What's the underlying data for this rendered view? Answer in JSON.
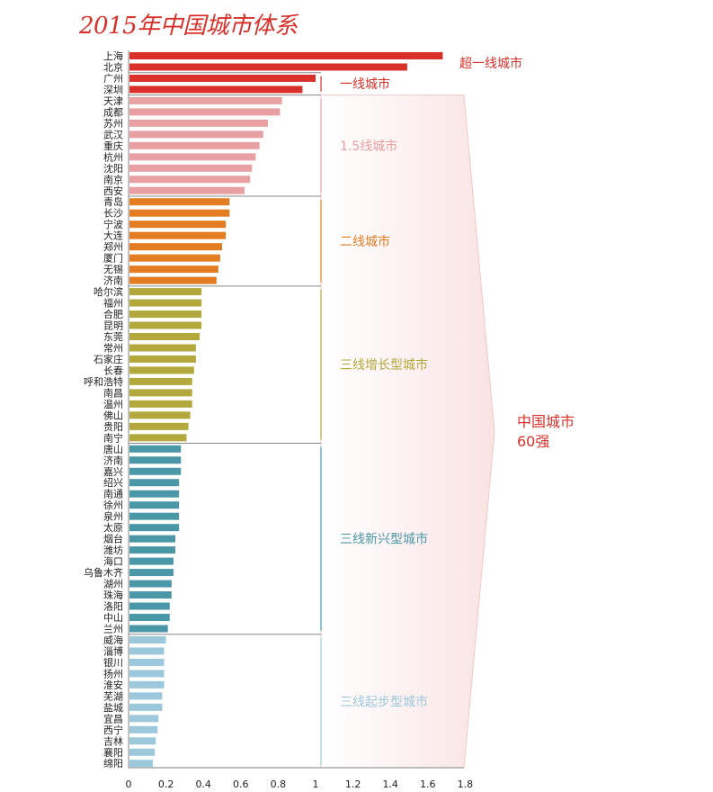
{
  "chart_data": {
    "type": "bar",
    "orientation": "horizontal",
    "title": "2015年中国城市体系",
    "xlim": [
      0,
      1.8
    ],
    "xticks": [
      "0",
      "0.2",
      "0.4",
      "0.6",
      "0.8",
      "1",
      "1.2",
      "1.4",
      "1.6",
      "1.8"
    ],
    "groups": [
      {
        "name": "超一线城市",
        "color": "#d9302a",
        "label_color": "#d9302a",
        "categories": [
          "上海",
          "北京"
        ],
        "values": [
          1.68,
          1.49
        ]
      },
      {
        "name": "一线城市",
        "color": "#d9302a",
        "label_color": "#d9302a",
        "categories": [
          "广州",
          "深圳"
        ],
        "values": [
          1.0,
          0.93
        ]
      },
      {
        "name": "1.5线城市",
        "color": "#e8a0a2",
        "label_color": "#e8a0a2",
        "categories": [
          "天津",
          "成都",
          "苏州",
          "武汉",
          "重庆",
          "杭州",
          "沈阳",
          "南京",
          "西安"
        ],
        "values": [
          0.82,
          0.81,
          0.745,
          0.72,
          0.7,
          0.68,
          0.66,
          0.65,
          0.62
        ]
      },
      {
        "name": "二线城市",
        "color": "#e47d22",
        "label_color": "#e47d22",
        "categories": [
          "青岛",
          "长沙",
          "宁波",
          "大连",
          "郑州",
          "厦门",
          "无锡",
          "济南"
        ],
        "values": [
          0.54,
          0.54,
          0.52,
          0.52,
          0.5,
          0.49,
          0.48,
          0.47
        ]
      },
      {
        "name": "三线增长型城市",
        "color": "#b2a83c",
        "label_color": "#b2a83c",
        "categories": [
          "哈尔滨",
          "福州",
          "合肥",
          "昆明",
          "东莞",
          "常州",
          "石家庄",
          "长春",
          "呼和浩特",
          "南昌",
          "温州",
          "佛山",
          "贵阳",
          "南宁"
        ],
        "values": [
          0.39,
          0.39,
          0.39,
          0.39,
          0.38,
          0.36,
          0.36,
          0.35,
          0.34,
          0.34,
          0.34,
          0.33,
          0.32,
          0.31
        ]
      },
      {
        "name": "三线新兴型城市",
        "color": "#4a97a8",
        "label_color": "#4a97a8",
        "categories": [
          "唐山",
          "济南",
          "嘉兴",
          "绍兴",
          "南通",
          "徐州",
          "泉州",
          "太原",
          "烟台",
          "潍坊",
          "海口",
          "乌鲁木齐",
          "湖州",
          "珠海",
          "洛阳",
          "中山",
          "兰州"
        ],
        "values": [
          0.28,
          0.28,
          0.28,
          0.27,
          0.27,
          0.27,
          0.27,
          0.27,
          0.25,
          0.25,
          0.24,
          0.24,
          0.23,
          0.23,
          0.22,
          0.22,
          0.21
        ]
      },
      {
        "name": "三线起步型城市",
        "color": "#9cc8dc",
        "label_color": "#9cc8dc",
        "categories": [
          "威海",
          "淄博",
          "银川",
          "扬州",
          "淮安",
          "芜湖",
          "盐城",
          "宜昌",
          "西宁",
          "吉林",
          "襄阳",
          "绵阳"
        ],
        "values": [
          0.2,
          0.19,
          0.19,
          0.19,
          0.19,
          0.18,
          0.18,
          0.16,
          0.155,
          0.145,
          0.14,
          0.13
        ]
      }
    ],
    "summary_label": [
      "中国城市",
      "60强"
    ],
    "summary_color": "#d9302a"
  }
}
